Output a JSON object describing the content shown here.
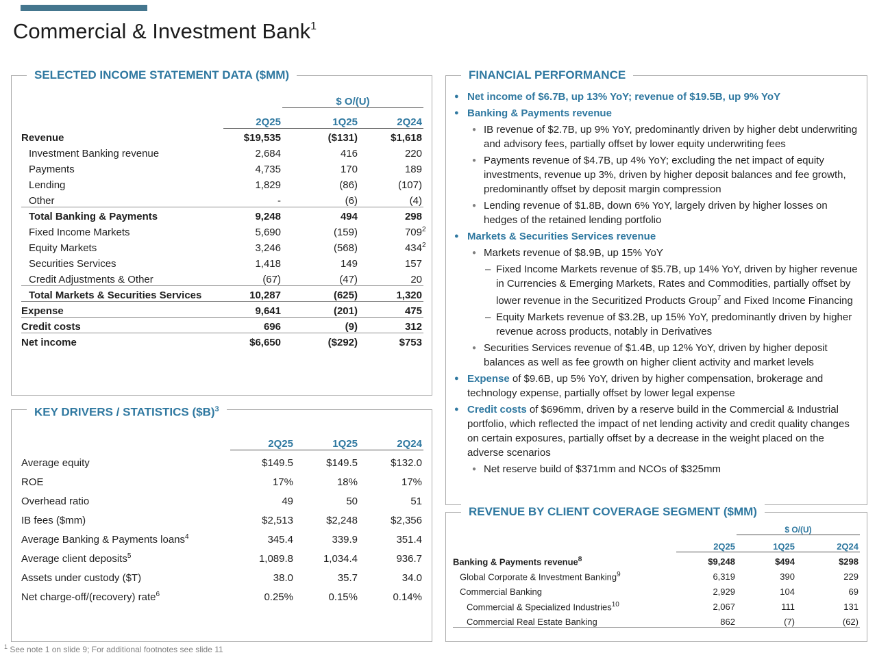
{
  "page": {
    "title": "Commercial & Investment Bank",
    "title_superscript": "1",
    "footnote_superscript": "1",
    "footnote": " See note 1 on slide 9; For additional footnotes see slide 11"
  },
  "colors": {
    "accent_bar": "#44768E",
    "heading_teal": "#2F78A0",
    "body_text": "#1F1F1F",
    "muted_gray": "#7F7F7F"
  },
  "income_statement": {
    "heading": "SELECTED INCOME STATEMENT DATA ($MM)",
    "over_under_label": "$ O/(U)",
    "columns": [
      "2Q25",
      "1Q25",
      "2Q24"
    ],
    "rows": [
      {
        "label": "Revenue",
        "bold": true,
        "indent": 0,
        "values": [
          "$19,535",
          "($131)",
          "$1,618"
        ]
      },
      {
        "label": "Investment Banking revenue",
        "indent": 1,
        "values": [
          "2,684",
          "416",
          "220"
        ]
      },
      {
        "label": "Payments",
        "indent": 1,
        "values": [
          "4,735",
          "170",
          "189"
        ]
      },
      {
        "label": "Lending",
        "indent": 1,
        "values": [
          "1,829",
          "(86)",
          "(107)"
        ]
      },
      {
        "label": "Other",
        "indent": 1,
        "values": [
          "-",
          "(6)",
          "(4)"
        ],
        "line_below": true
      },
      {
        "label": "Total Banking & Payments",
        "bold": true,
        "indent": 1,
        "values": [
          "9,248",
          "494",
          "298"
        ]
      },
      {
        "label": "Fixed Income Markets",
        "indent": 1,
        "values": [
          "5,690",
          "(159)",
          "709"
        ],
        "value_sups": [
          null,
          null,
          "2"
        ]
      },
      {
        "label": "Equity Markets",
        "indent": 1,
        "values": [
          "3,246",
          "(568)",
          "434"
        ],
        "value_sups": [
          null,
          null,
          "2"
        ]
      },
      {
        "label": "Securities Services",
        "indent": 1,
        "values": [
          "1,418",
          "149",
          "157"
        ]
      },
      {
        "label": "Credit Adjustments & Other",
        "indent": 1,
        "values": [
          "(67)",
          "(47)",
          "20"
        ],
        "line_below": true
      },
      {
        "label": "Total Markets & Securities Services",
        "bold": true,
        "indent": 1,
        "values": [
          "10,287",
          "(625)",
          "1,320"
        ],
        "line_below": true
      },
      {
        "label": "Expense",
        "bold": true,
        "indent": 0,
        "values": [
          "9,641",
          "(201)",
          "475"
        ],
        "line_below": true
      },
      {
        "label": "Credit costs",
        "bold": true,
        "indent": 0,
        "values": [
          "696",
          "(9)",
          "312"
        ],
        "line_below": true
      },
      {
        "label": "Net income",
        "bold": true,
        "indent": 0,
        "values": [
          "$6,650",
          "($292)",
          "$753"
        ]
      }
    ]
  },
  "key_drivers": {
    "heading": "KEY DRIVERS / STATISTICS ($B)",
    "heading_superscript": "3",
    "columns": [
      "2Q25",
      "1Q25",
      "2Q24"
    ],
    "rows": [
      {
        "label": "Average equity",
        "indent": 0,
        "values": [
          "$149.5",
          "$149.5",
          "$132.0"
        ]
      },
      {
        "label": "ROE",
        "indent": 0,
        "values": [
          "17%",
          "18%",
          "17%"
        ]
      },
      {
        "label": "Overhead ratio",
        "indent": 0,
        "values": [
          "49",
          "50",
          "51"
        ]
      },
      {
        "label": "IB fees ($mm)",
        "indent": 0,
        "values": [
          "$2,513",
          "$2,248",
          "$2,356"
        ]
      },
      {
        "label": "Average Banking & Payments loans",
        "label_superscript": "4",
        "indent": 0,
        "values": [
          "345.4",
          "339.9",
          "351.4"
        ]
      },
      {
        "label": "Average client deposits",
        "label_superscript": "5",
        "indent": 0,
        "values": [
          "1,089.8",
          "1,034.4",
          "936.7"
        ]
      },
      {
        "label": "Assets under custody ($T)",
        "indent": 0,
        "values": [
          "38.0",
          "35.7",
          "34.0"
        ]
      },
      {
        "label": "Net charge-off/(recovery) rate",
        "label_superscript": "6",
        "indent": 0,
        "values": [
          "0.25%",
          "0.15%",
          "0.14%"
        ]
      }
    ]
  },
  "financial_performance": {
    "heading": "FINANCIAL PERFORMANCE",
    "bullets": [
      {
        "level": 1,
        "segments": [
          {
            "text": "Net income of $6.7B, up 13% YoY; revenue of $19.5B, up 9% YoY",
            "style": "lead"
          }
        ]
      },
      {
        "level": 1,
        "segments": [
          {
            "text": "Banking & Payments revenue",
            "style": "lead"
          }
        ]
      },
      {
        "level": 2,
        "segments": [
          {
            "text": "IB revenue of $2.7B, up 9% YoY, predominantly driven by higher debt underwriting and advisory fees, partially offset by lower equity underwriting fees"
          }
        ]
      },
      {
        "level": 2,
        "segments": [
          {
            "text": "Payments revenue of $4.7B, up 4% YoY; excluding the net impact of equity investments, revenue up 3%, driven by higher deposit balances and fee growth, predominantly offset by deposit margin compression"
          }
        ]
      },
      {
        "level": 2,
        "segments": [
          {
            "text": "Lending revenue of $1.8B, down 6% YoY, largely driven by higher losses on hedges of the retained lending portfolio"
          }
        ]
      },
      {
        "level": 1,
        "segments": [
          {
            "text": "Markets & Securities Services revenue",
            "style": "lead"
          }
        ]
      },
      {
        "level": 2,
        "segments": [
          {
            "text": "Markets revenue of $8.9B, up 15% YoY"
          }
        ]
      },
      {
        "level": 3,
        "segments": [
          {
            "text": "Fixed Income Markets revenue of $5.7B, up 14% YoY, driven by higher revenue in Currencies & Emerging Markets, Rates and Commodities, partially offset by lower revenue in the Securitized Products Group"
          },
          {
            "text": "7",
            "sup": true
          },
          {
            "text": " and Fixed Income Financing"
          }
        ]
      },
      {
        "level": 3,
        "segments": [
          {
            "text": "Equity Markets revenue of $3.2B, up 15% YoY, predominantly driven by higher revenue across products, notably in Derivatives"
          }
        ]
      },
      {
        "level": 2,
        "segments": [
          {
            "text": "Securities Services revenue of $1.4B, up 12% YoY, driven by higher deposit balances as well as fee growth on higher client activity and market levels"
          }
        ]
      },
      {
        "level": 1,
        "segments": [
          {
            "text": "Expense",
            "style": "lead"
          },
          {
            "text": " of $9.6B, up 5% YoY, driven by higher compensation, brokerage and technology expense, partially offset by lower legal expense"
          }
        ]
      },
      {
        "level": 1,
        "segments": [
          {
            "text": "Credit costs",
            "style": "lead"
          },
          {
            "text": " of $696mm, driven by a reserve build in the Commercial & Industrial portfolio, which reflected the impact of net lending activity and credit quality changes on certain exposures, partially offset by a decrease in the weight placed on the adverse scenarios"
          }
        ]
      },
      {
        "level": 2,
        "segments": [
          {
            "text": "Net reserve build of $371mm and NCOs of $325mm"
          }
        ]
      }
    ]
  },
  "segment_revenue": {
    "heading": "REVENUE BY CLIENT COVERAGE SEGMENT ($MM)",
    "over_under_label": "$ O/(U)",
    "columns": [
      "2Q25",
      "1Q25",
      "2Q24"
    ],
    "rows": [
      {
        "label": "Banking & Payments revenue",
        "label_superscript": "8",
        "bold": true,
        "indent": 0,
        "values": [
          "$9,248",
          "$494",
          "$298"
        ]
      },
      {
        "label": "Global Corporate & Investment Banking",
        "label_superscript": "9",
        "indent": 1,
        "values": [
          "6,319",
          "390",
          "229"
        ]
      },
      {
        "label": "Commercial Banking",
        "indent": 1,
        "values": [
          "2,929",
          "104",
          "69"
        ]
      },
      {
        "label": "Commercial & Specialized Industries",
        "label_superscript": "10",
        "indent": 2,
        "values": [
          "2,067",
          "111",
          "131"
        ]
      },
      {
        "label": "Commercial Real Estate Banking",
        "indent": 2,
        "values": [
          "862",
          "(7)",
          "(62)"
        ],
        "line_below": true
      }
    ]
  }
}
